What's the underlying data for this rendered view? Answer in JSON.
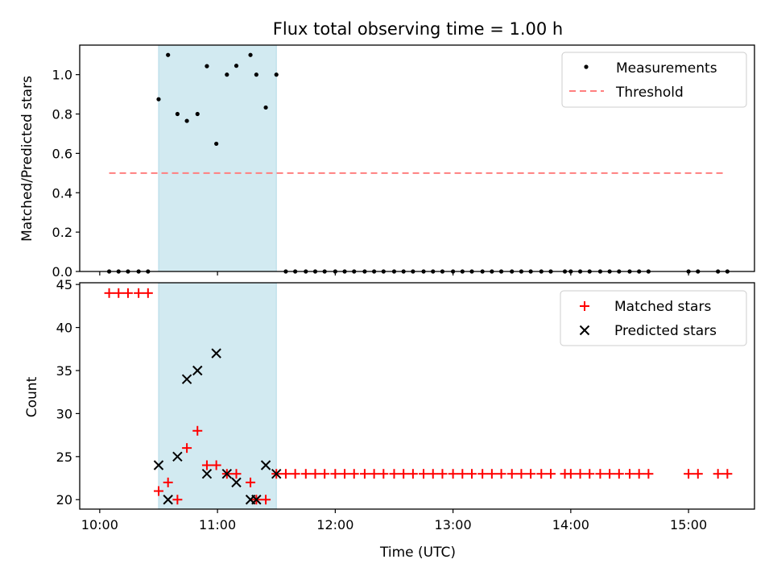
{
  "chart_data": {
    "type": "scatter",
    "title": "Flux total observing time = 1.00 h",
    "xlabel": "Time (UTC)",
    "x_ticks": [
      {
        "hour": 10,
        "label": "10:00"
      },
      {
        "hour": 11,
        "label": "11:00"
      },
      {
        "hour": 12,
        "label": "12:00"
      },
      {
        "hour": 13,
        "label": "13:00"
      },
      {
        "hour": 14,
        "label": "14:00"
      },
      {
        "hour": 15,
        "label": "15:00"
      }
    ],
    "xlim_hours": [
      9.83,
      15.56
    ],
    "shaded_span_hours": [
      10.5,
      11.5
    ],
    "shaded_color": "#add8e6",
    "top": {
      "ylabel": "Matched/Predicted stars",
      "ylim": [
        0,
        1.15
      ],
      "y_ticks": [
        {
          "value": 0.0,
          "label": "0.0"
        },
        {
          "value": 0.2,
          "label": "0.2"
        },
        {
          "value": 0.4,
          "label": "0.4"
        },
        {
          "value": 0.6,
          "label": "0.6"
        },
        {
          "value": 0.8,
          "label": "0.8"
        },
        {
          "value": 1.0,
          "label": "1.0"
        }
      ],
      "series": [
        {
          "name": "Measurements",
          "color": "#000000",
          "points": [
            [
              10.08,
              0
            ],
            [
              10.16,
              0
            ],
            [
              10.24,
              0
            ],
            [
              10.33,
              0
            ],
            [
              10.41,
              0
            ],
            [
              10.5,
              0.875
            ],
            [
              10.58,
              1.1
            ],
            [
              10.66,
              0.8
            ],
            [
              10.74,
              0.765
            ],
            [
              10.83,
              0.8
            ],
            [
              10.91,
              1.043
            ],
            [
              10.99,
              0.649
            ],
            [
              11.08,
              1.0
            ],
            [
              11.16,
              1.045
            ],
            [
              11.28,
              1.1
            ],
            [
              11.33,
              1.0
            ],
            [
              11.41,
              0.833
            ],
            [
              11.5,
              1.0
            ],
            [
              11.58,
              0
            ],
            [
              11.66,
              0
            ],
            [
              11.75,
              0
            ],
            [
              11.83,
              0
            ],
            [
              11.91,
              0
            ],
            [
              12.0,
              0
            ],
            [
              12.08,
              0
            ],
            [
              12.16,
              0
            ],
            [
              12.25,
              0
            ],
            [
              12.33,
              0
            ],
            [
              12.41,
              0
            ],
            [
              12.5,
              0
            ],
            [
              12.58,
              0
            ],
            [
              12.66,
              0
            ],
            [
              12.75,
              0
            ],
            [
              12.83,
              0
            ],
            [
              12.91,
              0
            ],
            [
              13.0,
              0
            ],
            [
              13.08,
              0
            ],
            [
              13.16,
              0
            ],
            [
              13.25,
              0
            ],
            [
              13.33,
              0
            ],
            [
              13.41,
              0
            ],
            [
              13.5,
              0
            ],
            [
              13.58,
              0
            ],
            [
              13.66,
              0
            ],
            [
              13.75,
              0
            ],
            [
              13.83,
              0
            ],
            [
              13.95,
              0
            ],
            [
              14.0,
              0
            ],
            [
              14.08,
              0
            ],
            [
              14.16,
              0
            ],
            [
              14.25,
              0
            ],
            [
              14.33,
              0
            ],
            [
              14.41,
              0
            ],
            [
              14.5,
              0
            ],
            [
              14.58,
              0
            ],
            [
              14.66,
              0
            ],
            [
              15.0,
              0
            ],
            [
              15.08,
              0
            ],
            [
              15.25,
              0
            ],
            [
              15.33,
              0
            ]
          ]
        }
      ],
      "threshold": {
        "name": "Threshold",
        "value": 0.5,
        "x_range_hours": [
          10.08,
          15.3
        ],
        "color": "#ff7f7f"
      },
      "legend_position": "upper right"
    },
    "bottom": {
      "ylabel": "Count",
      "ylim": [
        18.9,
        45.2
      ],
      "y_ticks": [
        {
          "value": 20,
          "label": "20"
        },
        {
          "value": 25,
          "label": "25"
        },
        {
          "value": 30,
          "label": "30"
        },
        {
          "value": 35,
          "label": "35"
        },
        {
          "value": 40,
          "label": "40"
        },
        {
          "value": 45,
          "label": "45"
        }
      ],
      "series": [
        {
          "name": "Matched stars",
          "marker": "+",
          "color": "#ff0000",
          "points": [
            [
              10.08,
              44
            ],
            [
              10.16,
              44
            ],
            [
              10.24,
              44
            ],
            [
              10.33,
              44
            ],
            [
              10.41,
              44
            ],
            [
              10.5,
              21
            ],
            [
              10.58,
              22
            ],
            [
              10.66,
              20
            ],
            [
              10.74,
              26
            ],
            [
              10.83,
              28
            ],
            [
              10.91,
              24
            ],
            [
              10.99,
              24
            ],
            [
              11.08,
              23
            ],
            [
              11.16,
              23
            ],
            [
              11.28,
              22
            ],
            [
              11.33,
              20
            ],
            [
              11.41,
              20
            ],
            [
              11.5,
              23
            ],
            [
              11.58,
              23
            ],
            [
              11.66,
              23
            ],
            [
              11.75,
              23
            ],
            [
              11.83,
              23
            ],
            [
              11.91,
              23
            ],
            [
              12.0,
              23
            ],
            [
              12.08,
              23
            ],
            [
              12.16,
              23
            ],
            [
              12.25,
              23
            ],
            [
              12.33,
              23
            ],
            [
              12.41,
              23
            ],
            [
              12.5,
              23
            ],
            [
              12.58,
              23
            ],
            [
              12.66,
              23
            ],
            [
              12.75,
              23
            ],
            [
              12.83,
              23
            ],
            [
              12.91,
              23
            ],
            [
              13.0,
              23
            ],
            [
              13.08,
              23
            ],
            [
              13.16,
              23
            ],
            [
              13.25,
              23
            ],
            [
              13.33,
              23
            ],
            [
              13.41,
              23
            ],
            [
              13.5,
              23
            ],
            [
              13.58,
              23
            ],
            [
              13.66,
              23
            ],
            [
              13.75,
              23
            ],
            [
              13.83,
              23
            ],
            [
              13.95,
              23
            ],
            [
              14.0,
              23
            ],
            [
              14.08,
              23
            ],
            [
              14.16,
              23
            ],
            [
              14.25,
              23
            ],
            [
              14.33,
              23
            ],
            [
              14.41,
              23
            ],
            [
              14.5,
              23
            ],
            [
              14.58,
              23
            ],
            [
              14.66,
              23
            ],
            [
              15.0,
              23
            ],
            [
              15.08,
              23
            ],
            [
              15.25,
              23
            ],
            [
              15.33,
              23
            ]
          ]
        },
        {
          "name": "Predicted stars",
          "marker": "x",
          "color": "#000000",
          "points": [
            [
              10.5,
              24
            ],
            [
              10.58,
              20
            ],
            [
              10.66,
              25
            ],
            [
              10.74,
              34
            ],
            [
              10.83,
              35
            ],
            [
              10.91,
              23
            ],
            [
              10.99,
              37
            ],
            [
              11.08,
              23
            ],
            [
              11.16,
              22
            ],
            [
              11.28,
              20
            ],
            [
              11.33,
              20
            ],
            [
              11.41,
              24
            ],
            [
              11.5,
              23
            ]
          ]
        }
      ],
      "legend_position": "upper right"
    }
  }
}
